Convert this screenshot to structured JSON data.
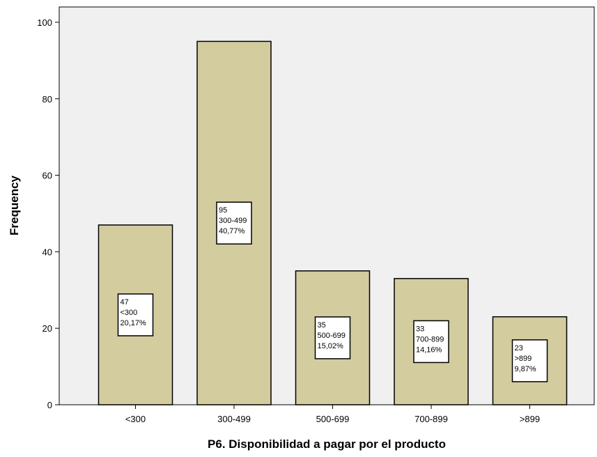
{
  "chart_data": {
    "type": "bar",
    "xlabel": "P6. Disponibilidad a pagar por el producto",
    "ylabel": "Frequency",
    "categories": [
      "<300",
      "300-499",
      "500-699",
      "700-899",
      ">899"
    ],
    "values": [
      47,
      95,
      35,
      33,
      23
    ],
    "data_labels": [
      {
        "count": "47",
        "category": "<300",
        "percent": "20,17%"
      },
      {
        "count": "95",
        "category": "300-499",
        "percent": "40,77%"
      },
      {
        "count": "35",
        "category": "500-699",
        "percent": "15,02%"
      },
      {
        "count": "33",
        "category": "700-899",
        "percent": "14,16%"
      },
      {
        "count": "23",
        "category": ">899",
        "percent": "9,87%"
      }
    ],
    "yticks": [
      0,
      20,
      40,
      60,
      80,
      100
    ],
    "ylim": [
      0,
      104
    ],
    "grid": false,
    "legend": "none",
    "colors": {
      "bar_fill": "#d3cc9f",
      "bar_stroke": "#000000",
      "plot_background": "#f0f0f0",
      "label_box_fill": "#ffffff"
    }
  }
}
